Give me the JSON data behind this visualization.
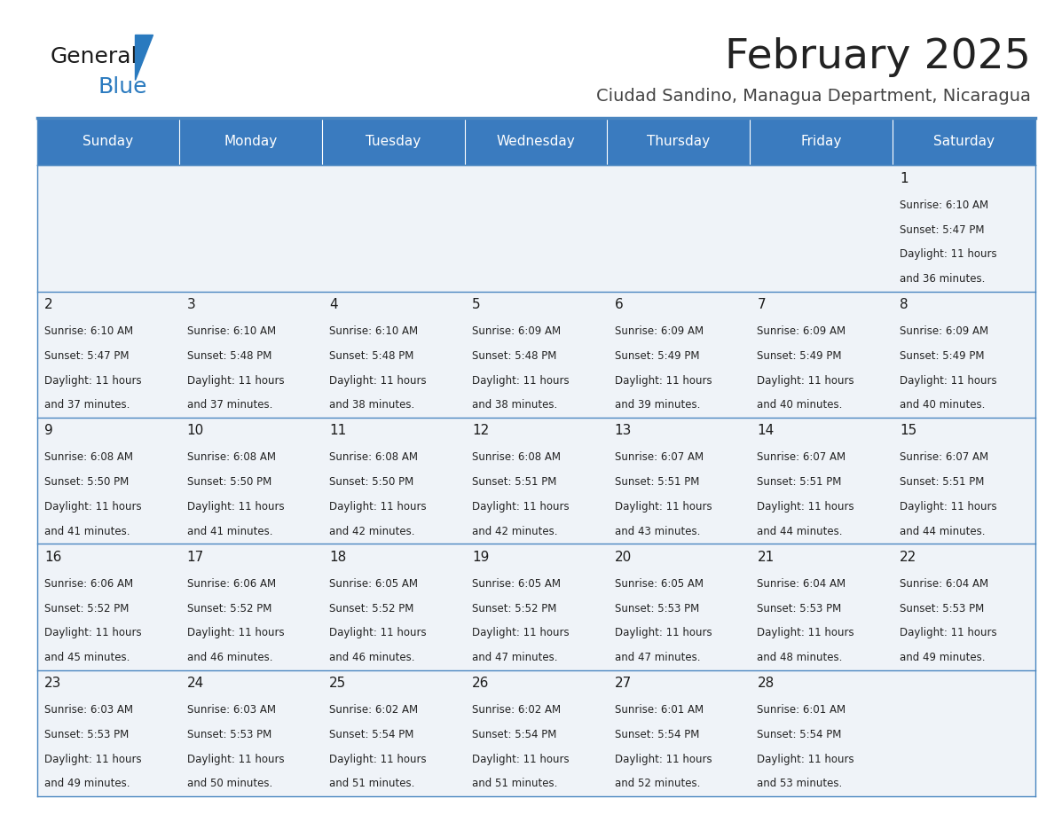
{
  "title": "February 2025",
  "subtitle": "Ciudad Sandino, Managua Department, Nicaragua",
  "days_of_week": [
    "Sunday",
    "Monday",
    "Tuesday",
    "Wednesday",
    "Thursday",
    "Friday",
    "Saturday"
  ],
  "header_bg": "#3a7bbf",
  "header_text": "#ffffff",
  "cell_bg": "#eff3f8",
  "border_color": "#4a86c0",
  "title_color": "#222222",
  "subtitle_color": "#444444",
  "day_number_color": "#1a1a1a",
  "cell_text_color": "#222222",
  "calendar": [
    [
      null,
      null,
      null,
      null,
      null,
      null,
      {
        "day": "1",
        "sunrise": "6:10 AM",
        "sunset": "5:47 PM",
        "daylight": "11 hours",
        "daylight2": "and 36 minutes."
      }
    ],
    [
      {
        "day": "2",
        "sunrise": "6:10 AM",
        "sunset": "5:47 PM",
        "daylight": "11 hours",
        "daylight2": "and 37 minutes."
      },
      {
        "day": "3",
        "sunrise": "6:10 AM",
        "sunset": "5:48 PM",
        "daylight": "11 hours",
        "daylight2": "and 37 minutes."
      },
      {
        "day": "4",
        "sunrise": "6:10 AM",
        "sunset": "5:48 PM",
        "daylight": "11 hours",
        "daylight2": "and 38 minutes."
      },
      {
        "day": "5",
        "sunrise": "6:09 AM",
        "sunset": "5:48 PM",
        "daylight": "11 hours",
        "daylight2": "and 38 minutes."
      },
      {
        "day": "6",
        "sunrise": "6:09 AM",
        "sunset": "5:49 PM",
        "daylight": "11 hours",
        "daylight2": "and 39 minutes."
      },
      {
        "day": "7",
        "sunrise": "6:09 AM",
        "sunset": "5:49 PM",
        "daylight": "11 hours",
        "daylight2": "and 40 minutes."
      },
      {
        "day": "8",
        "sunrise": "6:09 AM",
        "sunset": "5:49 PM",
        "daylight": "11 hours",
        "daylight2": "and 40 minutes."
      }
    ],
    [
      {
        "day": "9",
        "sunrise": "6:08 AM",
        "sunset": "5:50 PM",
        "daylight": "11 hours",
        "daylight2": "and 41 minutes."
      },
      {
        "day": "10",
        "sunrise": "6:08 AM",
        "sunset": "5:50 PM",
        "daylight": "11 hours",
        "daylight2": "and 41 minutes."
      },
      {
        "day": "11",
        "sunrise": "6:08 AM",
        "sunset": "5:50 PM",
        "daylight": "11 hours",
        "daylight2": "and 42 minutes."
      },
      {
        "day": "12",
        "sunrise": "6:08 AM",
        "sunset": "5:51 PM",
        "daylight": "11 hours",
        "daylight2": "and 42 minutes."
      },
      {
        "day": "13",
        "sunrise": "6:07 AM",
        "sunset": "5:51 PM",
        "daylight": "11 hours",
        "daylight2": "and 43 minutes."
      },
      {
        "day": "14",
        "sunrise": "6:07 AM",
        "sunset": "5:51 PM",
        "daylight": "11 hours",
        "daylight2": "and 44 minutes."
      },
      {
        "day": "15",
        "sunrise": "6:07 AM",
        "sunset": "5:51 PM",
        "daylight": "11 hours",
        "daylight2": "and 44 minutes."
      }
    ],
    [
      {
        "day": "16",
        "sunrise": "6:06 AM",
        "sunset": "5:52 PM",
        "daylight": "11 hours",
        "daylight2": "and 45 minutes."
      },
      {
        "day": "17",
        "sunrise": "6:06 AM",
        "sunset": "5:52 PM",
        "daylight": "11 hours",
        "daylight2": "and 46 minutes."
      },
      {
        "day": "18",
        "sunrise": "6:05 AM",
        "sunset": "5:52 PM",
        "daylight": "11 hours",
        "daylight2": "and 46 minutes."
      },
      {
        "day": "19",
        "sunrise": "6:05 AM",
        "sunset": "5:52 PM",
        "daylight": "11 hours",
        "daylight2": "and 47 minutes."
      },
      {
        "day": "20",
        "sunrise": "6:05 AM",
        "sunset": "5:53 PM",
        "daylight": "11 hours",
        "daylight2": "and 47 minutes."
      },
      {
        "day": "21",
        "sunrise": "6:04 AM",
        "sunset": "5:53 PM",
        "daylight": "11 hours",
        "daylight2": "and 48 minutes."
      },
      {
        "day": "22",
        "sunrise": "6:04 AM",
        "sunset": "5:53 PM",
        "daylight": "11 hours",
        "daylight2": "and 49 minutes."
      }
    ],
    [
      {
        "day": "23",
        "sunrise": "6:03 AM",
        "sunset": "5:53 PM",
        "daylight": "11 hours",
        "daylight2": "and 49 minutes."
      },
      {
        "day": "24",
        "sunrise": "6:03 AM",
        "sunset": "5:53 PM",
        "daylight": "11 hours",
        "daylight2": "and 50 minutes."
      },
      {
        "day": "25",
        "sunrise": "6:02 AM",
        "sunset": "5:54 PM",
        "daylight": "11 hours",
        "daylight2": "and 51 minutes."
      },
      {
        "day": "26",
        "sunrise": "6:02 AM",
        "sunset": "5:54 PM",
        "daylight": "11 hours",
        "daylight2": "and 51 minutes."
      },
      {
        "day": "27",
        "sunrise": "6:01 AM",
        "sunset": "5:54 PM",
        "daylight": "11 hours",
        "daylight2": "and 52 minutes."
      },
      {
        "day": "28",
        "sunrise": "6:01 AM",
        "sunset": "5:54 PM",
        "daylight": "11 hours",
        "daylight2": "and 53 minutes."
      },
      null
    ]
  ],
  "fig_width": 11.88,
  "fig_height": 9.18,
  "logo_general_size": 18,
  "logo_blue_size": 18,
  "title_fontsize": 34,
  "subtitle_fontsize": 14,
  "header_fontsize": 11,
  "day_num_fontsize": 11,
  "cell_fontsize": 8.5
}
